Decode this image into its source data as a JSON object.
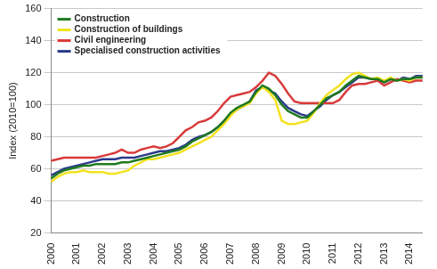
{
  "chart_data": {
    "type": "line",
    "y_label": "Index (2010=100)",
    "categories": [
      "2000",
      null,
      null,
      null,
      "2001",
      null,
      null,
      null,
      "2002",
      null,
      null,
      null,
      "2003",
      null,
      null,
      null,
      "2004",
      null,
      null,
      null,
      "2005",
      null,
      null,
      null,
      "2006",
      null,
      null,
      null,
      "2007",
      null,
      null,
      null,
      "2008",
      null,
      null,
      null,
      "2009",
      null,
      null,
      null,
      "2010",
      null,
      null,
      null,
      "2011",
      null,
      null,
      null,
      "2012",
      null,
      null,
      null,
      "2013",
      null,
      null,
      null,
      "2014",
      null,
      null
    ],
    "series": [
      {
        "name": "Construction",
        "color": "#1f7a1f",
        "values": [
          54,
          57,
          59,
          60,
          61,
          62,
          62,
          63,
          63,
          63,
          63,
          64,
          64,
          65,
          66,
          67,
          68,
          69,
          70,
          71,
          72,
          74,
          77,
          79,
          81,
          83,
          86,
          90,
          95,
          98,
          100,
          102,
          108,
          112,
          110,
          106,
          100,
          96,
          94,
          92,
          92,
          96,
          100,
          104,
          106,
          108,
          112,
          115,
          118,
          117,
          116,
          116,
          114,
          116,
          115,
          116,
          116,
          117,
          117
        ]
      },
      {
        "name": "Construction of buildings",
        "color": "#f2e21e",
        "values": [
          52,
          55,
          57,
          58,
          58,
          59,
          58,
          58,
          58,
          57,
          57,
          58,
          59,
          62,
          64,
          66,
          66,
          67,
          68,
          69,
          70,
          72,
          74,
          76,
          78,
          80,
          84,
          88,
          93,
          97,
          99,
          101,
          107,
          111,
          108,
          103,
          90,
          88,
          88,
          89,
          90,
          95,
          101,
          106,
          109,
          112,
          116,
          119,
          120,
          118,
          116,
          117,
          115,
          117,
          115,
          116,
          115,
          117,
          117
        ]
      },
      {
        "name": "Civil engineering",
        "color": "#d83a3a",
        "values": [
          65,
          66,
          67,
          67,
          67,
          67,
          67,
          67,
          68,
          69,
          70,
          72,
          70,
          70,
          72,
          73,
          74,
          73,
          74,
          76,
          80,
          84,
          86,
          89,
          90,
          92,
          96,
          101,
          105,
          106,
          107,
          108,
          111,
          115,
          120,
          118,
          113,
          107,
          102,
          101,
          101,
          101,
          101,
          101,
          101,
          103,
          108,
          112,
          113,
          113,
          114,
          115,
          112,
          114,
          116,
          115,
          114,
          115,
          115
        ]
      },
      {
        "name": "Specialised construction activities",
        "color": "#2b3a8c",
        "values": [
          56,
          58,
          60,
          61,
          62,
          63,
          64,
          65,
          66,
          66,
          66,
          67,
          67,
          67,
          68,
          69,
          70,
          71,
          71,
          72,
          73,
          75,
          78,
          80,
          81,
          83,
          86,
          90,
          94,
          97,
          99,
          102,
          109,
          111,
          109,
          107,
          102,
          98,
          96,
          94,
          93,
          96,
          99,
          103,
          106,
          108,
          111,
          114,
          117,
          117,
          116,
          116,
          114,
          116,
          115,
          117,
          116,
          118,
          118
        ]
      }
    ],
    "ylim": [
      20,
      160
    ],
    "yticks": [
      20,
      40,
      60,
      80,
      100,
      120,
      140,
      160
    ],
    "grid": true,
    "legend": "upper left"
  }
}
